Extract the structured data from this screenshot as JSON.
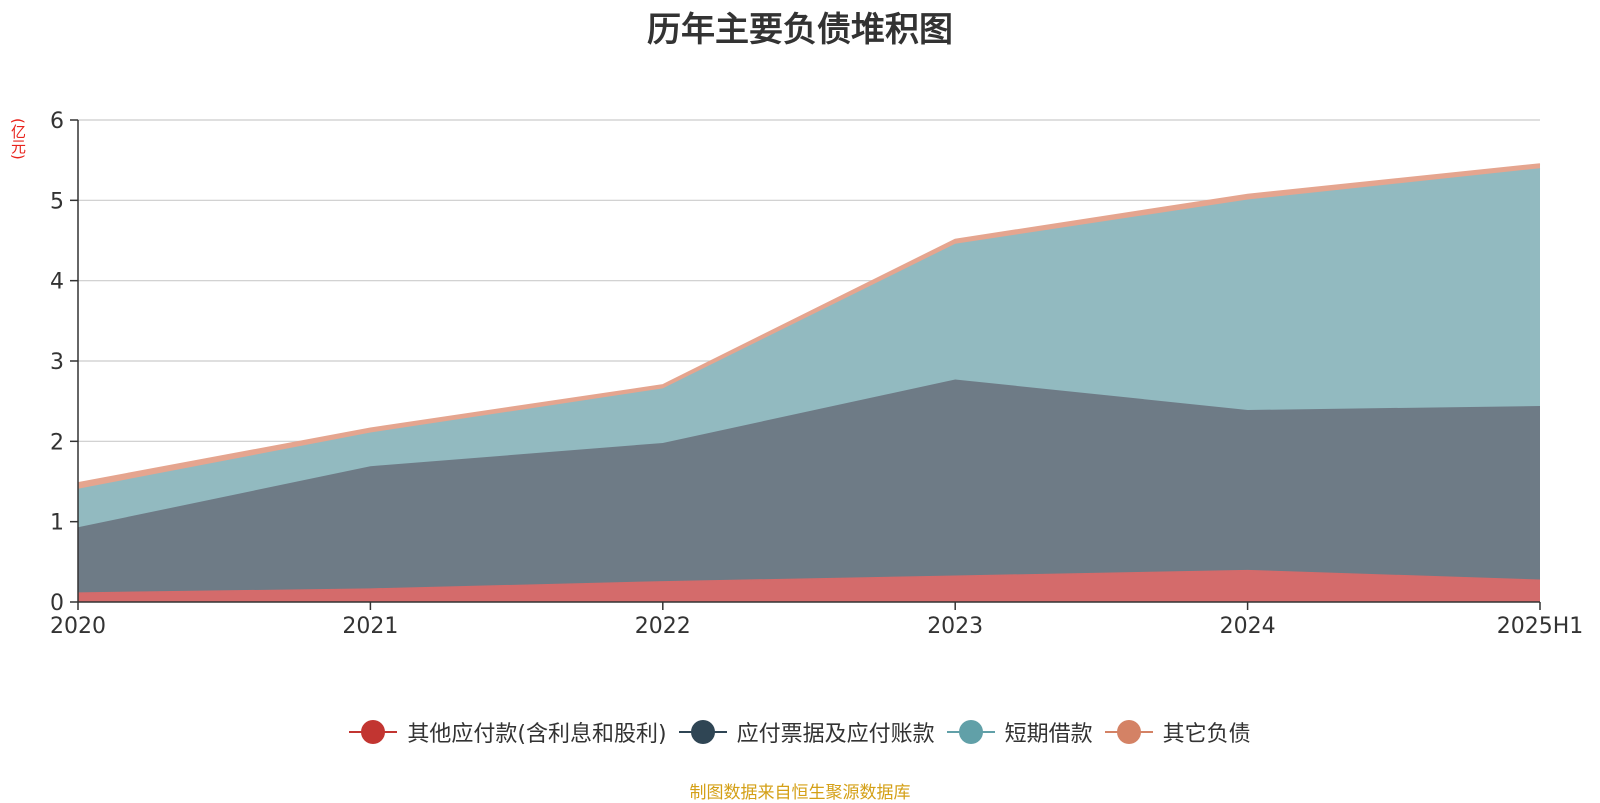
{
  "chart_data": {
    "type": "area",
    "stacked": true,
    "title": "历年主要负债堆积图",
    "unit": "(亿元)",
    "categories": [
      "2020",
      "2021",
      "2022",
      "2023",
      "2024",
      "2025H1"
    ],
    "ylim": [
      0,
      6
    ],
    "yticks": [
      "0",
      "1",
      "2",
      "3",
      "4",
      "5",
      "6"
    ],
    "grid": true,
    "legend_position": "bottom",
    "series": [
      {
        "name": "其他应付款(含利息和股利)",
        "values": [
          0.12,
          0.17,
          0.26,
          0.33,
          0.4,
          0.28
        ],
        "color": "#c23531",
        "fill": "#d46b6b"
      },
      {
        "name": "应付票据及应付账款",
        "values": [
          0.81,
          1.52,
          1.72,
          2.44,
          1.99,
          2.16
        ],
        "color": "#2f4554",
        "fill": "#6e7b86"
      },
      {
        "name": "短期借款",
        "values": [
          0.48,
          0.42,
          0.68,
          1.69,
          2.62,
          2.96
        ],
        "color": "#61a0a8",
        "fill": "#92bac0"
      },
      {
        "name": "其它负债",
        "values": [
          0.07,
          0.05,
          0.04,
          0.05,
          0.06,
          0.05
        ],
        "color": "#d48265",
        "fill": "#e5a58f"
      }
    ]
  },
  "source_note": "制图数据来自恒生聚源数据库"
}
